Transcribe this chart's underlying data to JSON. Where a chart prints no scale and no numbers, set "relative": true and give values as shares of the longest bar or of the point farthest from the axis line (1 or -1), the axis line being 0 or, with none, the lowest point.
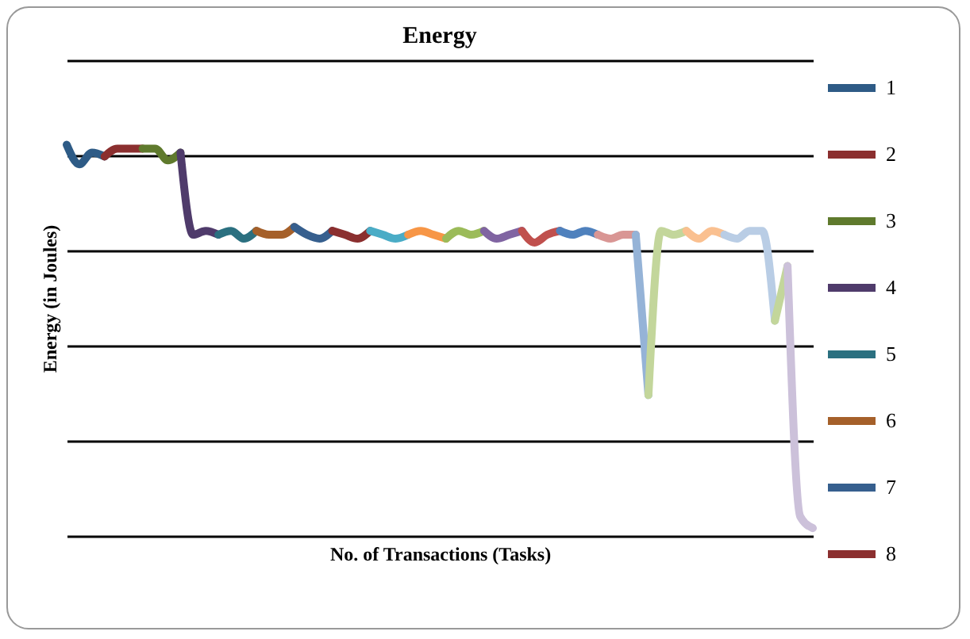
{
  "chart_data": {
    "type": "line",
    "title": "Energy",
    "xlabel": "No. of Transactions (Tasks)",
    "ylabel": "Energy (in Joules)",
    "relative": true,
    "grid": "y",
    "legend": "right",
    "line_style": "solid",
    "marker": "none",
    "categories": [
      null,
      null,
      null,
      null,
      null,
      null,
      null,
      null,
      null,
      null,
      null,
      null,
      null,
      null,
      null,
      null,
      null,
      null,
      null,
      null,
      null,
      null,
      null,
      null,
      null,
      null,
      null,
      null,
      null,
      null,
      null,
      null,
      null,
      null,
      null,
      null,
      null,
      null,
      null,
      null,
      null,
      null,
      null,
      null,
      null,
      null,
      null,
      null,
      null,
      null,
      null,
      null,
      null,
      null,
      null,
      null,
      null,
      null,
      null,
      null
    ],
    "series": [
      {
        "name": "1",
        "color": "#2e5b86",
        "values": [
          1.0,
          0.95,
          0.98,
          0.97,
          null,
          null,
          null,
          null,
          null,
          null,
          null,
          null,
          null,
          null,
          null,
          null,
          null,
          null,
          null,
          null,
          null,
          null,
          null,
          null,
          null,
          null,
          null,
          null,
          null,
          null,
          null,
          null,
          null,
          null,
          null,
          null,
          null,
          null,
          null,
          null,
          null,
          null,
          null,
          null,
          null,
          null,
          null,
          null,
          null,
          null,
          null,
          null,
          null,
          null,
          null,
          null,
          null,
          null,
          null,
          null
        ]
      },
      {
        "name": "2",
        "color": "#8b2f2f",
        "values": [
          null,
          null,
          null,
          0.97,
          0.99,
          0.99,
          0.99,
          null,
          null,
          null,
          null,
          null,
          null,
          null,
          null,
          null,
          null,
          null,
          null,
          null,
          null,
          null,
          null,
          null,
          null,
          null,
          null,
          null,
          null,
          null,
          null,
          null,
          null,
          null,
          null,
          null,
          null,
          null,
          null,
          null,
          null,
          null,
          null,
          null,
          null,
          null,
          null,
          null,
          null,
          null,
          null,
          null,
          null,
          null,
          null,
          null,
          null,
          null,
          null,
          null
        ]
      },
      {
        "name": "3",
        "color": "#5f7a2d",
        "values": [
          null,
          null,
          null,
          null,
          null,
          null,
          0.99,
          0.99,
          0.96,
          0.98,
          null,
          null,
          null,
          null,
          null,
          null,
          null,
          null,
          null,
          null,
          null,
          null,
          null,
          null,
          null,
          null,
          null,
          null,
          null,
          null,
          null,
          null,
          null,
          null,
          null,
          null,
          null,
          null,
          null,
          null,
          null,
          null,
          null,
          null,
          null,
          null,
          null,
          null,
          null,
          null,
          null,
          null,
          null,
          null,
          null,
          null,
          null,
          null,
          null,
          null
        ]
      },
      {
        "name": "4",
        "color": "#4f3b6b",
        "values": [
          null,
          null,
          null,
          null,
          null,
          null,
          null,
          null,
          null,
          0.98,
          0.77,
          0.78,
          0.77,
          null,
          null,
          null,
          null,
          null,
          null,
          null,
          null,
          null,
          null,
          null,
          null,
          null,
          null,
          null,
          null,
          null,
          null,
          null,
          null,
          null,
          null,
          null,
          null,
          null,
          null,
          null,
          null,
          null,
          null,
          null,
          null,
          null,
          null,
          null,
          null,
          null,
          null,
          null,
          null,
          null,
          null,
          null,
          null,
          null,
          null,
          null
        ]
      },
      {
        "name": "5",
        "color": "#2b7080",
        "values": [
          null,
          null,
          null,
          null,
          null,
          null,
          null,
          null,
          null,
          null,
          null,
          null,
          0.77,
          0.78,
          0.76,
          0.78,
          null,
          null,
          null,
          null,
          null,
          null,
          null,
          null,
          null,
          null,
          null,
          null,
          null,
          null,
          null,
          null,
          null,
          null,
          null,
          null,
          null,
          null,
          null,
          null,
          null,
          null,
          null,
          null,
          null,
          null,
          null,
          null,
          null,
          null,
          null,
          null,
          null,
          null,
          null,
          null,
          null,
          null,
          null,
          null
        ]
      },
      {
        "name": "6",
        "color": "#a5602a",
        "values": [
          null,
          null,
          null,
          null,
          null,
          null,
          null,
          null,
          null,
          null,
          null,
          null,
          null,
          null,
          null,
          0.78,
          0.77,
          0.77,
          0.79,
          null,
          null,
          null,
          null,
          null,
          null,
          null,
          null,
          null,
          null,
          null,
          null,
          null,
          null,
          null,
          null,
          null,
          null,
          null,
          null,
          null,
          null,
          null,
          null,
          null,
          null,
          null,
          null,
          null,
          null,
          null,
          null,
          null,
          null,
          null,
          null,
          null,
          null,
          null,
          null,
          null
        ]
      },
      {
        "name": "7",
        "color": "#365f8e",
        "values": [
          null,
          null,
          null,
          null,
          null,
          null,
          null,
          null,
          null,
          null,
          null,
          null,
          null,
          null,
          null,
          null,
          null,
          null,
          0.79,
          0.77,
          0.76,
          0.78,
          null,
          null,
          null,
          null,
          null,
          null,
          null,
          null,
          null,
          null,
          null,
          null,
          null,
          null,
          null,
          null,
          null,
          null,
          null,
          null,
          null,
          null,
          null,
          null,
          null,
          null,
          null,
          null,
          null,
          null,
          null,
          null,
          null,
          null,
          null,
          null,
          null,
          null
        ]
      },
      {
        "name": "8",
        "color": "#8b2f2f",
        "values": [
          null,
          null,
          null,
          null,
          null,
          null,
          null,
          null,
          null,
          null,
          null,
          null,
          null,
          null,
          null,
          null,
          null,
          null,
          null,
          null,
          null,
          0.78,
          0.77,
          0.76,
          0.78,
          null,
          null,
          null,
          null,
          null,
          null,
          null,
          null,
          null,
          null,
          null,
          null,
          null,
          null,
          null,
          null,
          null,
          null,
          null,
          null,
          null,
          null,
          null,
          null,
          null,
          null,
          null,
          null,
          null,
          null,
          null,
          null,
          null,
          null,
          null
        ]
      },
      {
        "color": "#4aacc6",
        "values": [
          null,
          null,
          null,
          null,
          null,
          null,
          null,
          null,
          null,
          null,
          null,
          null,
          null,
          null,
          null,
          null,
          null,
          null,
          null,
          null,
          null,
          null,
          null,
          null,
          0.78,
          0.77,
          0.76,
          0.77,
          null,
          null,
          null,
          null,
          null,
          null,
          null,
          null,
          null,
          null,
          null,
          null,
          null,
          null,
          null,
          null,
          null,
          null,
          null,
          null,
          null,
          null,
          null,
          null,
          null,
          null,
          null,
          null,
          null,
          null,
          null,
          null
        ]
      },
      {
        "color": "#f79646",
        "values": [
          null,
          null,
          null,
          null,
          null,
          null,
          null,
          null,
          null,
          null,
          null,
          null,
          null,
          null,
          null,
          null,
          null,
          null,
          null,
          null,
          null,
          null,
          null,
          null,
          null,
          null,
          null,
          0.77,
          0.78,
          0.77,
          0.76,
          null,
          null,
          null,
          null,
          null,
          null,
          null,
          null,
          null,
          null,
          null,
          null,
          null,
          null,
          null,
          null,
          null,
          null,
          null,
          null,
          null,
          null,
          null,
          null,
          null,
          null,
          null,
          null,
          null
        ]
      },
      {
        "color": "#9bbb59",
        "values": [
          null,
          null,
          null,
          null,
          null,
          null,
          null,
          null,
          null,
          null,
          null,
          null,
          null,
          null,
          null,
          null,
          null,
          null,
          null,
          null,
          null,
          null,
          null,
          null,
          null,
          null,
          null,
          null,
          null,
          null,
          0.76,
          0.78,
          0.77,
          0.78,
          null,
          null,
          null,
          null,
          null,
          null,
          null,
          null,
          null,
          null,
          null,
          null,
          null,
          null,
          null,
          null,
          null,
          null,
          null,
          null,
          null,
          null,
          null,
          null,
          null,
          null
        ]
      },
      {
        "color": "#8064a2",
        "values": [
          null,
          null,
          null,
          null,
          null,
          null,
          null,
          null,
          null,
          null,
          null,
          null,
          null,
          null,
          null,
          null,
          null,
          null,
          null,
          null,
          null,
          null,
          null,
          null,
          null,
          null,
          null,
          null,
          null,
          null,
          null,
          null,
          null,
          0.78,
          0.76,
          0.77,
          0.78,
          null,
          null,
          null,
          null,
          null,
          null,
          null,
          null,
          null,
          null,
          null,
          null,
          null,
          null,
          null,
          null,
          null,
          null,
          null,
          null,
          null,
          null,
          null
        ]
      },
      {
        "color": "#c0504d",
        "values": [
          null,
          null,
          null,
          null,
          null,
          null,
          null,
          null,
          null,
          null,
          null,
          null,
          null,
          null,
          null,
          null,
          null,
          null,
          null,
          null,
          null,
          null,
          null,
          null,
          null,
          null,
          null,
          null,
          null,
          null,
          null,
          null,
          null,
          null,
          null,
          null,
          0.78,
          0.75,
          0.77,
          0.78,
          null,
          null,
          null,
          null,
          null,
          null,
          null,
          null,
          null,
          null,
          null,
          null,
          null,
          null,
          null,
          null,
          null,
          null,
          null,
          null
        ]
      },
      {
        "color": "#4f81bd",
        "values": [
          null,
          null,
          null,
          null,
          null,
          null,
          null,
          null,
          null,
          null,
          null,
          null,
          null,
          null,
          null,
          null,
          null,
          null,
          null,
          null,
          null,
          null,
          null,
          null,
          null,
          null,
          null,
          null,
          null,
          null,
          null,
          null,
          null,
          null,
          null,
          null,
          null,
          null,
          null,
          0.78,
          0.77,
          0.78,
          0.77,
          null,
          null,
          null,
          null,
          null,
          null,
          null,
          null,
          null,
          null,
          null,
          null,
          null,
          null,
          null,
          null,
          null
        ]
      },
      {
        "color": "#d99694",
        "values": [
          null,
          null,
          null,
          null,
          null,
          null,
          null,
          null,
          null,
          null,
          null,
          null,
          null,
          null,
          null,
          null,
          null,
          null,
          null,
          null,
          null,
          null,
          null,
          null,
          null,
          null,
          null,
          null,
          null,
          null,
          null,
          null,
          null,
          null,
          null,
          null,
          null,
          null,
          null,
          null,
          null,
          null,
          0.77,
          0.76,
          0.77,
          0.77,
          null,
          null,
          null,
          null,
          null,
          null,
          null,
          null,
          null,
          null,
          null,
          null,
          null,
          null
        ]
      },
      {
        "color": "#95b3d7",
        "values": [
          null,
          null,
          null,
          null,
          null,
          null,
          null,
          null,
          null,
          null,
          null,
          null,
          null,
          null,
          null,
          null,
          null,
          null,
          null,
          null,
          null,
          null,
          null,
          null,
          null,
          null,
          null,
          null,
          null,
          null,
          null,
          null,
          null,
          null,
          null,
          null,
          null,
          null,
          null,
          null,
          null,
          null,
          null,
          null,
          null,
          0.77,
          0.36,
          null,
          null,
          null,
          null,
          null,
          null,
          null,
          null,
          null,
          null,
          null,
          null,
          null
        ]
      },
      {
        "color": "#c3d69b",
        "values": [
          null,
          null,
          null,
          null,
          null,
          null,
          null,
          null,
          null,
          null,
          null,
          null,
          null,
          null,
          null,
          null,
          null,
          null,
          null,
          null,
          null,
          null,
          null,
          null,
          null,
          null,
          null,
          null,
          null,
          null,
          null,
          null,
          null,
          null,
          null,
          null,
          null,
          null,
          null,
          null,
          null,
          null,
          null,
          null,
          null,
          null,
          0.36,
          0.78,
          0.77,
          0.78,
          null,
          null,
          null,
          null,
          null,
          null,
          null,
          null,
          null,
          null
        ]
      },
      {
        "color": "#fac090",
        "values": [
          null,
          null,
          null,
          null,
          null,
          null,
          null,
          null,
          null,
          null,
          null,
          null,
          null,
          null,
          null,
          null,
          null,
          null,
          null,
          null,
          null,
          null,
          null,
          null,
          null,
          null,
          null,
          null,
          null,
          null,
          null,
          null,
          null,
          null,
          null,
          null,
          null,
          null,
          null,
          null,
          null,
          null,
          null,
          null,
          null,
          null,
          null,
          null,
          null,
          0.78,
          0.76,
          0.78,
          0.77,
          null,
          null,
          null,
          null,
          null,
          null,
          null
        ]
      },
      {
        "color": "#b9cde5",
        "values": [
          null,
          null,
          null,
          null,
          null,
          null,
          null,
          null,
          null,
          null,
          null,
          null,
          null,
          null,
          null,
          null,
          null,
          null,
          null,
          null,
          null,
          null,
          null,
          null,
          null,
          null,
          null,
          null,
          null,
          null,
          null,
          null,
          null,
          null,
          null,
          null,
          null,
          null,
          null,
          null,
          null,
          null,
          null,
          null,
          null,
          null,
          null,
          null,
          null,
          null,
          null,
          null,
          0.77,
          0.76,
          0.78,
          0.78,
          0.55,
          null,
          null,
          null
        ]
      },
      {
        "color": "#c3d69b",
        "values": [
          null,
          null,
          null,
          null,
          null,
          null,
          null,
          null,
          null,
          null,
          null,
          null,
          null,
          null,
          null,
          null,
          null,
          null,
          null,
          null,
          null,
          null,
          null,
          null,
          null,
          null,
          null,
          null,
          null,
          null,
          null,
          null,
          null,
          null,
          null,
          null,
          null,
          null,
          null,
          null,
          null,
          null,
          null,
          null,
          null,
          null,
          null,
          null,
          null,
          null,
          null,
          null,
          null,
          null,
          null,
          null,
          0.55,
          0.69,
          null,
          null
        ]
      },
      {
        "color": "#ccc1da",
        "values": [
          null,
          null,
          null,
          null,
          null,
          null,
          null,
          null,
          null,
          null,
          null,
          null,
          null,
          null,
          null,
          null,
          null,
          null,
          null,
          null,
          null,
          null,
          null,
          null,
          null,
          null,
          null,
          null,
          null,
          null,
          null,
          null,
          null,
          null,
          null,
          null,
          null,
          null,
          null,
          null,
          null,
          null,
          null,
          null,
          null,
          null,
          null,
          null,
          null,
          null,
          null,
          null,
          null,
          null,
          null,
          null,
          null,
          0.69,
          0.05,
          0.02
        ]
      }
    ]
  }
}
